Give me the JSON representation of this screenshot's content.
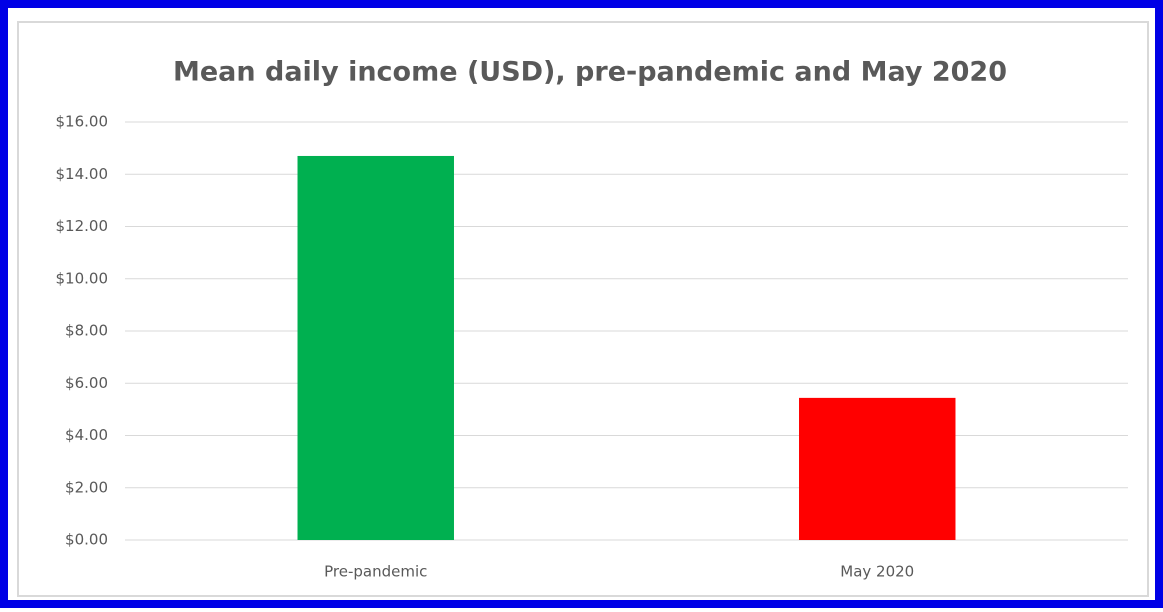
{
  "chart_data": {
    "type": "bar",
    "title": "Mean daily income (USD), pre-pandemic and May 2020",
    "categories": [
      "Pre-pandemic",
      "May 2020"
    ],
    "values": [
      14.7,
      5.44
    ],
    "colors": [
      "#00b050",
      "#ff0000"
    ],
    "ylim": [
      0,
      16
    ],
    "yticks": [
      {
        "value": 0,
        "label": "$0.00"
      },
      {
        "value": 2,
        "label": "$2.00"
      },
      {
        "value": 4,
        "label": "$4.00"
      },
      {
        "value": 6,
        "label": "$6.00"
      },
      {
        "value": 8,
        "label": "$8.00"
      },
      {
        "value": 10,
        "label": "$10.00"
      },
      {
        "value": 12,
        "label": "$12.00"
      },
      {
        "value": 14,
        "label": "$14.00"
      },
      {
        "value": 16,
        "label": "$16.00"
      }
    ],
    "grid": true
  }
}
